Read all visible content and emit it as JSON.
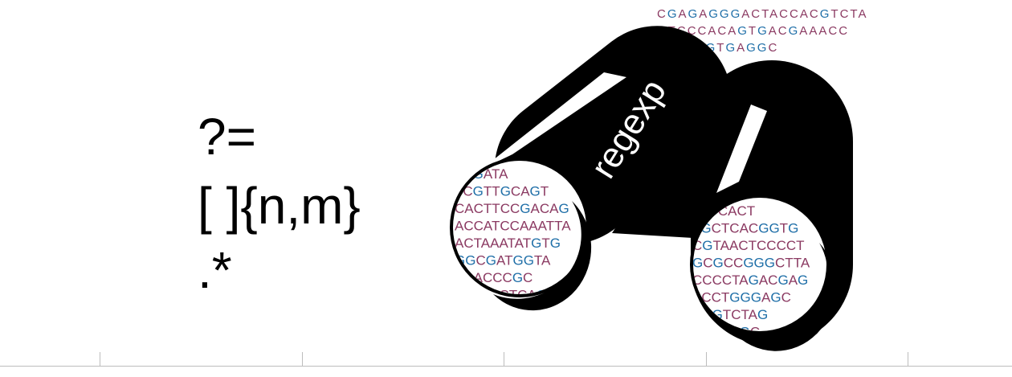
{
  "regex_tokens": [
    "?=",
    "[ ]{n,m}",
    ".*"
  ],
  "binocular_label": "regexp",
  "colors": {
    "base_purple": "#8b3a62",
    "base_blue": "#1f6fa8",
    "body": "#000000",
    "ruler": "#bdbdbd"
  },
  "top_sequences": [
    "CGAGAGGGACTACCACGTCTA",
    "GTCCCACAGTGACGAAACC",
    "TTAGGGTGAGGC"
  ],
  "left_lens_sequences": [
    "TCGATA",
    "TCGTTGCAGT",
    "CACTTCCGACAG",
    "ACCATCCAAATTA",
    "ACTAAATATGTG",
    "GGCGATGGTA",
    "ACACCCGC",
    "ACTAACTCAG"
  ],
  "right_lens_sequences": [
    "AATCACT",
    "TGCTCACGGTG",
    "CGTAACTCCCCT",
    "GCGCCGGGCTTA",
    "CCCCTAGACGAG",
    "ACCTGGGAGC",
    "CCGTCTAG",
    "AACCAGC"
  ]
}
